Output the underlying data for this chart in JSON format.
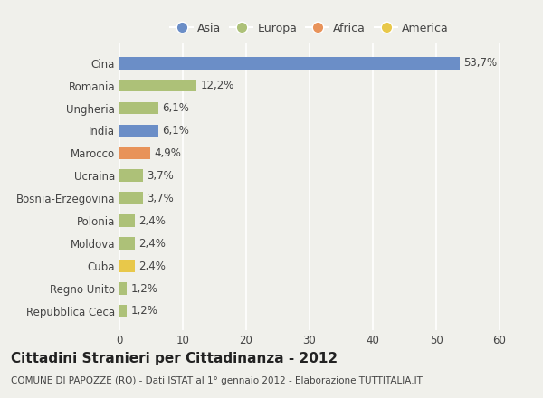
{
  "categories": [
    "Repubblica Ceca",
    "Regno Unito",
    "Cuba",
    "Moldova",
    "Polonia",
    "Bosnia-Erzegovina",
    "Ucraina",
    "Marocco",
    "India",
    "Ungheria",
    "Romania",
    "Cina"
  ],
  "values": [
    1.2,
    1.2,
    2.4,
    2.4,
    2.4,
    3.7,
    3.7,
    4.9,
    6.1,
    6.1,
    12.2,
    53.7
  ],
  "labels": [
    "1,2%",
    "1,2%",
    "2,4%",
    "2,4%",
    "2,4%",
    "3,7%",
    "3,7%",
    "4,9%",
    "6,1%",
    "6,1%",
    "12,2%",
    "53,7%"
  ],
  "colors": [
    "#adc178",
    "#adc178",
    "#e8c84a",
    "#adc178",
    "#adc178",
    "#adc178",
    "#adc178",
    "#e8935a",
    "#6b8ec7",
    "#adc178",
    "#adc178",
    "#6b8ec7"
  ],
  "continent_colors": {
    "Asia": "#6b8ec7",
    "Europa": "#adc178",
    "Africa": "#e8935a",
    "America": "#e8c84a"
  },
  "xlim": [
    0,
    60
  ],
  "xticks": [
    0,
    10,
    20,
    30,
    40,
    50,
    60
  ],
  "title": "Cittadini Stranieri per Cittadinanza - 2012",
  "subtitle": "COMUNE DI PAPOZZE (RO) - Dati ISTAT al 1° gennaio 2012 - Elaborazione TUTTITALIA.IT",
  "background_color": "#f0f0eb",
  "bar_height": 0.55,
  "grid_color": "#ffffff",
  "text_color": "#444444",
  "label_fontsize": 8.5,
  "title_fontsize": 11,
  "subtitle_fontsize": 7.5,
  "ytick_fontsize": 8.5,
  "xtick_fontsize": 8.5,
  "legend_labels": [
    "Asia",
    "Europa",
    "Africa",
    "America"
  ]
}
